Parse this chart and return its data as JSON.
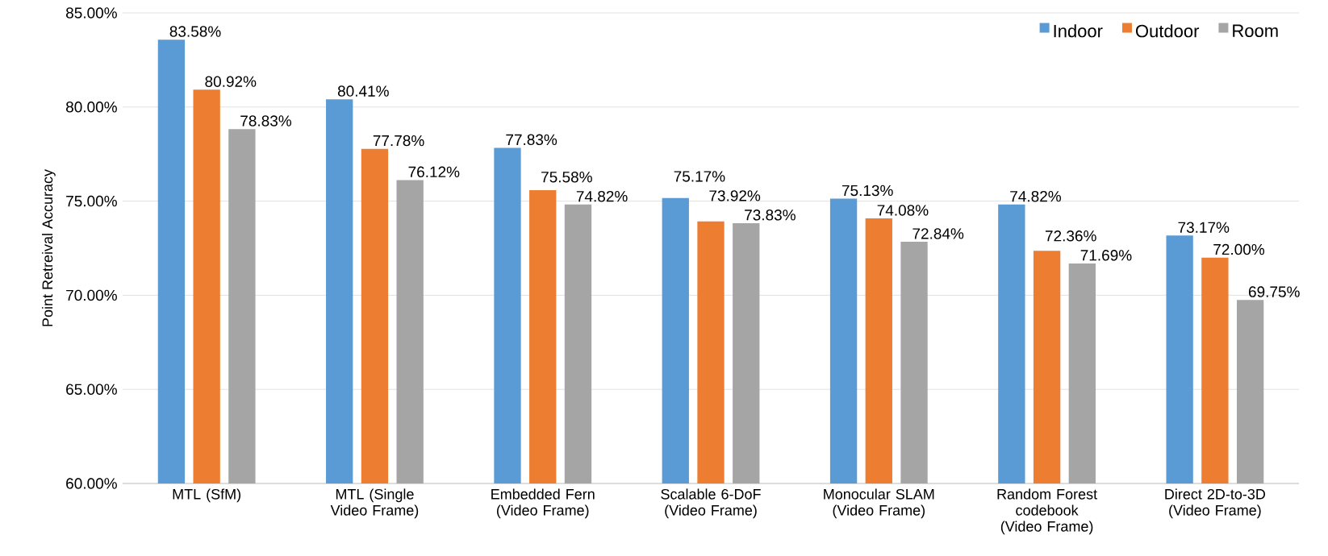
{
  "chart_data": {
    "type": "bar",
    "ylabel": "Point Retreival Accuracy",
    "categories": [
      "MTL (SfM)",
      "MTL (Single Video Frame)",
      "Embedded Fern (Video Frame)",
      "Scalable 6-DoF (Video Frame)",
      "Monocular SLAM (Video Frame)",
      "Random Forest codebook (Video Frame)",
      "Direct 2D-to-3D (Video Frame)"
    ],
    "series": [
      {
        "name": "Indoor",
        "color": "#5b9bd5",
        "values": [
          83.58,
          80.41,
          77.83,
          75.17,
          75.13,
          74.82,
          73.17
        ],
        "value_labels": [
          "83.58%",
          "80.41%",
          "77.83%",
          "75.17%",
          "75.13%",
          "74.82%",
          "73.17%"
        ]
      },
      {
        "name": "Outdoor",
        "color": "#ed7d31",
        "values": [
          80.92,
          77.78,
          75.58,
          73.92,
          74.08,
          72.36,
          72.0
        ],
        "value_labels": [
          "80.92%",
          "77.78%",
          "75.58%",
          "73.92%",
          "74.08%",
          "72.36%",
          "72.00%"
        ]
      },
      {
        "name": "Room",
        "color": "#a5a5a5",
        "values": [
          78.83,
          76.12,
          74.82,
          73.83,
          72.84,
          71.69,
          69.75
        ],
        "value_labels": [
          "78.83%",
          "76.12%",
          "74.82%",
          "73.83%",
          "72.84%",
          "71.69%",
          "69.75%"
        ]
      }
    ],
    "ylim": [
      60,
      85
    ],
    "yticks": [
      {
        "value": 60,
        "label": "60.00%"
      },
      {
        "value": 65,
        "label": "65.00%"
      },
      {
        "value": 70,
        "label": "70.00%"
      },
      {
        "value": 75,
        "label": "75.00%"
      },
      {
        "value": 80,
        "label": "80.00%"
      },
      {
        "value": 85,
        "label": "85.00%"
      }
    ],
    "grid": "y",
    "legend": "top right"
  }
}
